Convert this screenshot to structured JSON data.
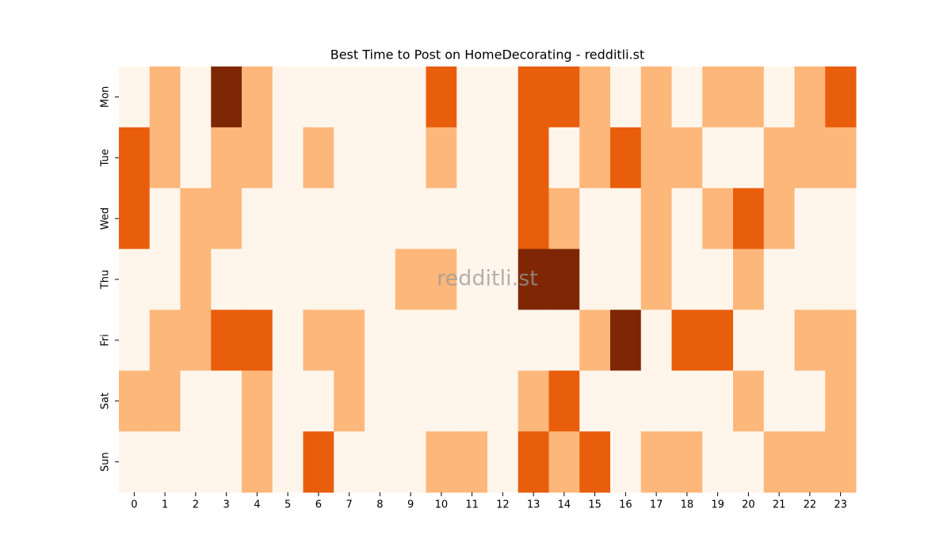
{
  "chart_data": {
    "type": "heatmap",
    "title": "Best Time to Post on HomeDecorating - redditli.st",
    "watermark": "redditli.st",
    "x": [
      0,
      1,
      2,
      3,
      4,
      5,
      6,
      7,
      8,
      9,
      10,
      11,
      12,
      13,
      14,
      15,
      16,
      17,
      18,
      19,
      20,
      21,
      22,
      23
    ],
    "y": [
      "Mon",
      "Tue",
      "Wed",
      "Thu",
      "Fri",
      "Sat",
      "Sun"
    ],
    "values": [
      [
        0,
        1,
        0,
        3,
        1,
        0,
        0,
        0,
        0,
        0,
        2,
        0,
        0,
        2,
        2,
        1,
        0,
        1,
        0,
        1,
        1,
        0,
        1,
        2
      ],
      [
        2,
        1,
        0,
        1,
        1,
        0,
        1,
        0,
        0,
        0,
        1,
        0,
        0,
        2,
        0,
        1,
        2,
        1,
        1,
        0,
        0,
        1,
        1,
        1
      ],
      [
        2,
        0,
        1,
        1,
        0,
        0,
        0,
        0,
        0,
        0,
        0,
        0,
        0,
        2,
        1,
        0,
        0,
        1,
        0,
        1,
        2,
        1,
        0,
        0
      ],
      [
        0,
        0,
        1,
        0,
        0,
        0,
        0,
        0,
        0,
        1,
        1,
        0,
        0,
        3,
        3,
        0,
        0,
        1,
        0,
        0,
        1,
        0,
        0,
        0
      ],
      [
        0,
        1,
        1,
        2,
        2,
        0,
        1,
        1,
        0,
        0,
        0,
        0,
        0,
        0,
        0,
        1,
        3,
        0,
        2,
        2,
        0,
        0,
        1,
        1
      ],
      [
        1,
        1,
        0,
        0,
        1,
        0,
        0,
        1,
        0,
        0,
        0,
        0,
        0,
        1,
        2,
        0,
        0,
        0,
        0,
        0,
        1,
        0,
        0,
        1
      ],
      [
        0,
        0,
        0,
        0,
        1,
        0,
        2,
        0,
        0,
        0,
        1,
        1,
        0,
        2,
        1,
        2,
        0,
        1,
        1,
        0,
        0,
        1,
        1,
        1
      ]
    ],
    "zlim": [
      0,
      3
    ],
    "colormap": [
      "#fff5eb",
      "#fdb77a",
      "#e95e0d",
      "#7f2704"
    ]
  }
}
